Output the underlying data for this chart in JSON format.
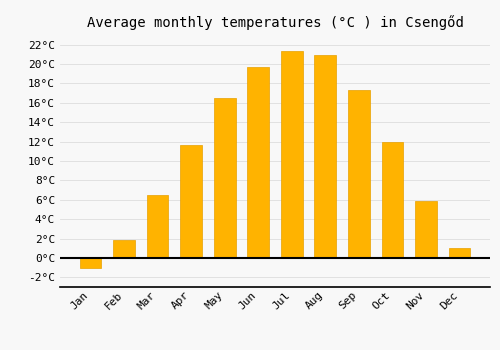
{
  "title": "Average monthly temperatures (°C ) in Csengőd",
  "months": [
    "Jan",
    "Feb",
    "Mar",
    "Apr",
    "May",
    "Jun",
    "Jul",
    "Aug",
    "Sep",
    "Oct",
    "Nov",
    "Dec"
  ],
  "values": [
    -1.0,
    1.8,
    6.5,
    11.7,
    16.5,
    19.7,
    21.3,
    20.9,
    17.3,
    12.0,
    5.9,
    1.0
  ],
  "bar_color": "#FFB300",
  "bar_edge_color": "#E8A000",
  "background_color": "#F8F8F8",
  "grid_color": "#DDDDDD",
  "ylim": [
    -3,
    23
  ],
  "yticks": [
    -2,
    0,
    2,
    4,
    6,
    8,
    10,
    12,
    14,
    16,
    18,
    20,
    22
  ],
  "title_fontsize": 10,
  "tick_fontsize": 8,
  "bar_width": 0.65
}
